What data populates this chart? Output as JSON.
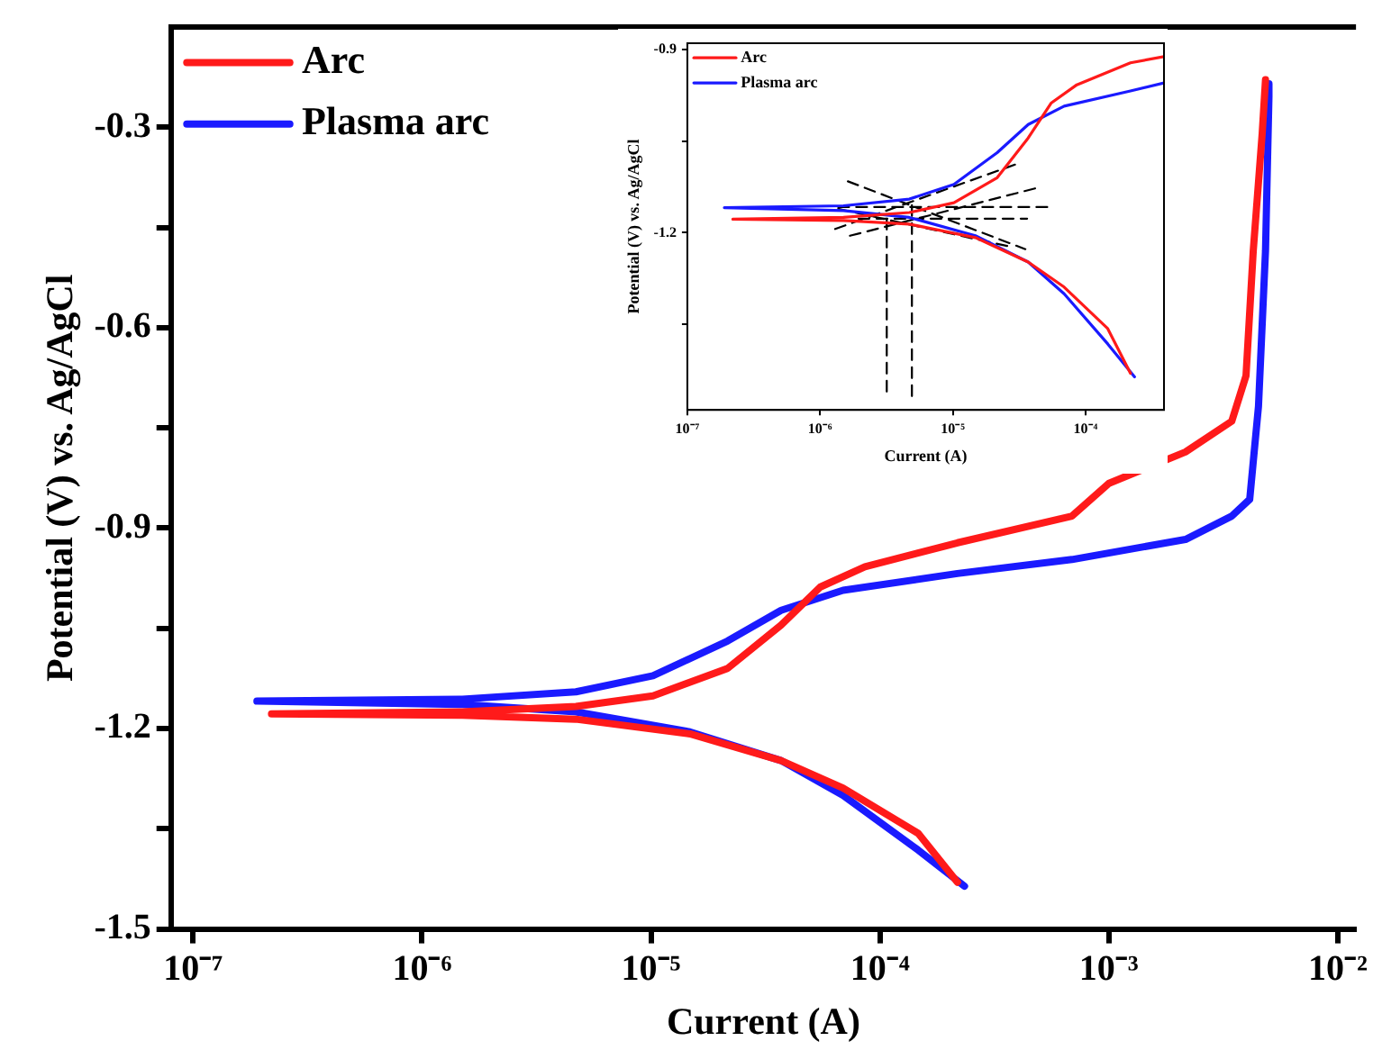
{
  "chart_data": [
    {
      "type": "line",
      "xlabel": "Current (A)",
      "ylabel": "Potential (V) vs. Ag/AgCl",
      "log": "x",
      "grid": false,
      "legend": "top left",
      "marker": "none",
      "xlim": [
        8e-08,
        0.012
      ],
      "xticks": [
        {
          "value": 1e-07,
          "label": "10⁻⁷"
        },
        {
          "value": 1e-06,
          "label": "10⁻⁶"
        },
        {
          "value": 1e-05,
          "label": "10⁻⁵"
        },
        {
          "value": 0.0001,
          "label": "10⁻⁴"
        },
        {
          "value": 0.001,
          "label": "10⁻³"
        },
        {
          "value": 0.01,
          "label": "10⁻²"
        }
      ],
      "ylim": [
        -1.5,
        -0.15
      ],
      "yticks": [
        -1.5,
        {
          "value": -1.35,
          "label": null
        },
        -1.2,
        {
          "value": -1.05,
          "label": null
        },
        -0.9,
        {
          "value": -0.75,
          "label": null
        },
        -0.6,
        {
          "value": -0.45,
          "label": null
        },
        -0.3
      ],
      "series": [
        {
          "name": "Arc",
          "color": "#ff1a1a",
          "x": [
            0.000218,
            0.000147,
            6.9e-05,
            3.7e-05,
            1.48e-05,
            4.7e-06,
            1.5e-06,
            2.2e-07,
            1.5e-06,
            4.7e-06,
            1.02e-05,
            2.16e-05,
            3.7e-05,
            5.5e-05,
            8.6e-05,
            0.000218,
            0.00069,
            0.001,
            0.00216,
            0.00344,
            0.00397,
            0.00427,
            0.00467,
            0.00483
          ],
          "values": [
            -1.43,
            -1.357,
            -1.289,
            -1.248,
            -1.208,
            -1.186,
            -1.18,
            -1.178,
            -1.175,
            -1.167,
            -1.151,
            -1.11,
            -1.045,
            -0.988,
            -0.958,
            -0.922,
            -0.882,
            -0.833,
            -0.786,
            -0.74,
            -0.672,
            -0.485,
            -0.31,
            -0.229
          ]
        },
        {
          "name": "Plasma arc",
          "color": "#1a1aff",
          "x": [
            0.000234,
            0.000147,
            6.9e-05,
            3.7e-05,
            1.48e-05,
            4.7e-06,
            1.5e-06,
            1.9e-07,
            1.5e-06,
            4.7e-06,
            1.02e-05,
            2.16e-05,
            3.7e-05,
            6.9e-05,
            0.000218,
            0.00069,
            0.00216,
            0.00344,
            0.00412,
            0.0045,
            0.00483,
            0.005,
            0.005
          ],
          "values": [
            -1.436,
            -1.382,
            -1.3,
            -1.248,
            -1.205,
            -1.175,
            -1.164,
            -1.159,
            -1.156,
            -1.145,
            -1.121,
            -1.069,
            -1.023,
            -0.993,
            -0.968,
            -0.947,
            -0.917,
            -0.882,
            -0.857,
            -0.718,
            -0.485,
            -0.254,
            -0.235
          ]
        }
      ]
    },
    {
      "type": "line",
      "xlabel": "Current (A)",
      "ylabel": "Potential (V) vs. Ag/AgCl",
      "log": "x",
      "grid": false,
      "legend": "top left",
      "marker": "none",
      "xlim": [
        1e-07,
        0.00039
      ],
      "xticks": [
        {
          "value": 1e-07,
          "label": "10⁻⁷"
        },
        {
          "value": 1e-06,
          "label": "10⁻⁶"
        },
        {
          "value": 1e-05,
          "label": "10⁻⁵"
        },
        {
          "value": 0.0001,
          "label": "10⁻⁴"
        }
      ],
      "ylim": [
        -1.49,
        -0.89
      ],
      "yticks": [
        {
          "value": -1.35,
          "label": null
        },
        -1.2,
        {
          "value": -1.05,
          "label": null
        },
        -0.9
      ],
      "series": [
        {
          "name": "Arc",
          "color": "#ff1a1a",
          "x": [
            0.000218,
            0.000147,
            6.9e-05,
            3.7e-05,
            1.48e-05,
            4.7e-06,
            1.5e-06,
            2.2e-07,
            1.5e-06,
            4.7e-06,
            1.02e-05,
            2.16e-05,
            3.7e-05,
            5.5e-05,
            8.6e-05,
            0.000218,
            0.00039
          ],
          "values": [
            -1.43,
            -1.357,
            -1.289,
            -1.248,
            -1.208,
            -1.186,
            -1.18,
            -1.178,
            -1.175,
            -1.167,
            -1.151,
            -1.11,
            -1.045,
            -0.988,
            -0.958,
            -0.922,
            -0.912
          ]
        },
        {
          "name": "Plasma arc",
          "color": "#1a1aff",
          "x": [
            0.000234,
            0.000147,
            6.9e-05,
            3.7e-05,
            1.48e-05,
            4.7e-06,
            1.5e-06,
            1.9e-07,
            1.5e-06,
            4.7e-06,
            1.02e-05,
            2.16e-05,
            3.7e-05,
            6.9e-05,
            0.000218,
            0.00039
          ],
          "values": [
            -1.436,
            -1.382,
            -1.3,
            -1.248,
            -1.205,
            -1.175,
            -1.164,
            -1.159,
            -1.156,
            -1.145,
            -1.121,
            -1.069,
            -1.023,
            -0.993,
            -0.968,
            -0.955
          ]
        },
        {
          "type": "line",
          "line_style": "dashed",
          "color": "#000000",
          "x": [
            3.18e-06,
            3.18e-06
          ],
          "values": [
            -1.177,
            -1.47
          ]
        },
        {
          "type": "line",
          "line_style": "dashed",
          "color": "#000000",
          "x": [
            4.92e-06,
            4.92e-06
          ],
          "values": [
            -1.155,
            -1.47
          ]
        },
        {
          "type": "line",
          "line_style": "dashed",
          "color": "#000000",
          "x": [
            1.37e-06,
            5.27e-05
          ],
          "values": [
            -1.158,
            -1.158
          ]
        },
        {
          "type": "line",
          "line_style": "dashed",
          "color": "#000000",
          "x": [
            1.95e-06,
            3.63e-05
          ],
          "values": [
            -1.177,
            -1.177
          ]
        },
        {
          "type": "line",
          "line_style": "dashed",
          "color": "#000000",
          "x": [
            1.3e-06,
            3.18e-05
          ],
          "values": [
            -1.194,
            -1.086
          ]
        },
        {
          "type": "line",
          "line_style": "dashed",
          "color": "#000000",
          "x": [
            1.68e-06,
            4.45e-05
          ],
          "values": [
            -1.205,
            -1.126
          ]
        },
        {
          "type": "line",
          "line_style": "dashed",
          "color": "#000000",
          "x": [
            1.62e-06,
            3.52e-05
          ],
          "values": [
            -1.116,
            -1.227
          ]
        },
        {
          "type": "line",
          "line_style": "dashed",
          "color": "#000000",
          "x": [
            1.37e-06,
            2.73e-05
          ],
          "values": [
            -1.161,
            -1.223
          ]
        }
      ]
    }
  ]
}
